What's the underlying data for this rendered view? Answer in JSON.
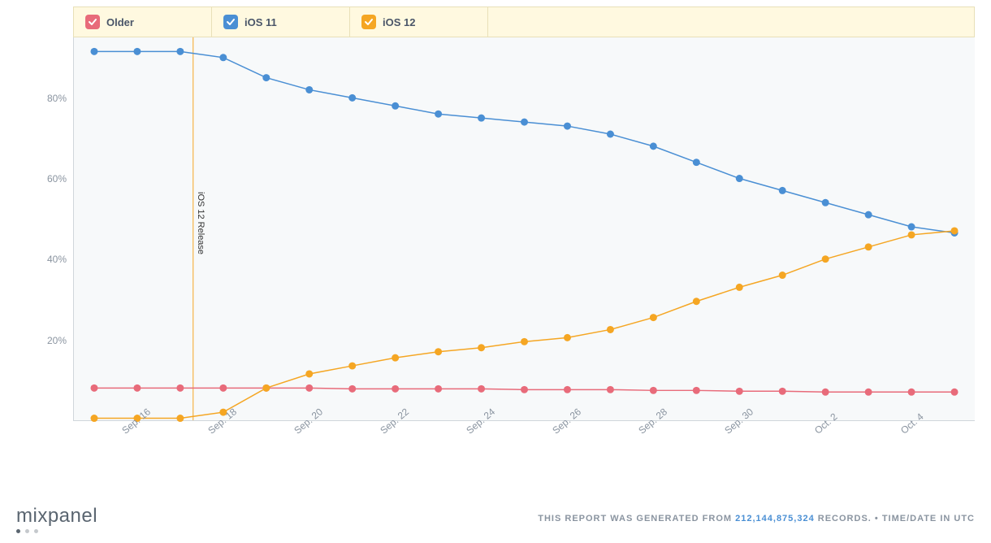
{
  "chart": {
    "type": "line",
    "background_color": "#f7f9fa",
    "grid_color": "#d0d6db",
    "axis_color": "#d0d6db",
    "tick_font_size": 12,
    "tick_color": "#8a94a0",
    "y": {
      "min": 0,
      "max": 95,
      "ticks": [
        20,
        40,
        60,
        80
      ],
      "tick_labels": [
        "20%",
        "40%",
        "60%",
        "80%"
      ]
    },
    "x": {
      "count": 21,
      "ticks_every": 2,
      "tick_start_index": 1,
      "tick_labels": [
        "Sep. 16",
        "Sep. 18",
        "Sep. 20",
        "Sep. 22",
        "Sep. 24",
        "Sep. 26",
        "Sep. 28",
        "Sep. 30",
        "Oct. 2",
        "Oct. 4"
      ]
    },
    "legend": {
      "background_color": "#fff9e0",
      "border_color": "#e8e0b8",
      "label_color": "#4a5568",
      "label_font_size": 13,
      "items": [
        {
          "key": "older",
          "label": "Older",
          "color": "#e86b7a",
          "checked": true
        },
        {
          "key": "ios11",
          "label": "iOS 11",
          "color": "#4a8fd4",
          "checked": true
        },
        {
          "key": "ios12",
          "label": "iOS 12",
          "color": "#f5a623",
          "checked": true
        }
      ]
    },
    "line_width": 1.5,
    "marker_radius": 4.5,
    "marker_style": "circle",
    "series": {
      "older": {
        "color": "#e86b7a",
        "values": [
          8,
          8,
          8,
          8,
          8,
          8,
          7.8,
          7.8,
          7.8,
          7.8,
          7.6,
          7.6,
          7.6,
          7.4,
          7.4,
          7.2,
          7.2,
          7,
          7,
          7,
          7
        ]
      },
      "ios11": {
        "color": "#4a8fd4",
        "values": [
          91.5,
          91.5,
          91.5,
          90,
          85,
          82,
          80,
          78,
          76,
          75,
          74,
          73,
          71,
          68,
          64,
          60,
          57,
          54,
          51,
          48,
          46.5
        ]
      },
      "ios12": {
        "color": "#f5a623",
        "values": [
          0.5,
          0.5,
          0.5,
          2,
          8,
          11.5,
          13.5,
          15.5,
          17,
          18,
          19.5,
          20.5,
          22.5,
          25.5,
          29.5,
          33,
          36,
          40,
          43,
          46,
          47
        ]
      }
    },
    "annotation": {
      "x_index": 2.3,
      "color": "#f5a623",
      "label": "iOS 12 Release",
      "label_font_size": 11,
      "label_color": "#333333"
    }
  },
  "footer": {
    "logo_text": "mixpanel",
    "logo_color": "#5a6570",
    "prefix": "THIS REPORT WAS GENERATED FROM ",
    "records": "212,144,875,324",
    "records_suffix": " RECORDS. ",
    "tz": "• TIME/DATE IN UTC",
    "text_color": "#8a94a0",
    "records_color": "#4a8fd4",
    "font_size": 11
  }
}
